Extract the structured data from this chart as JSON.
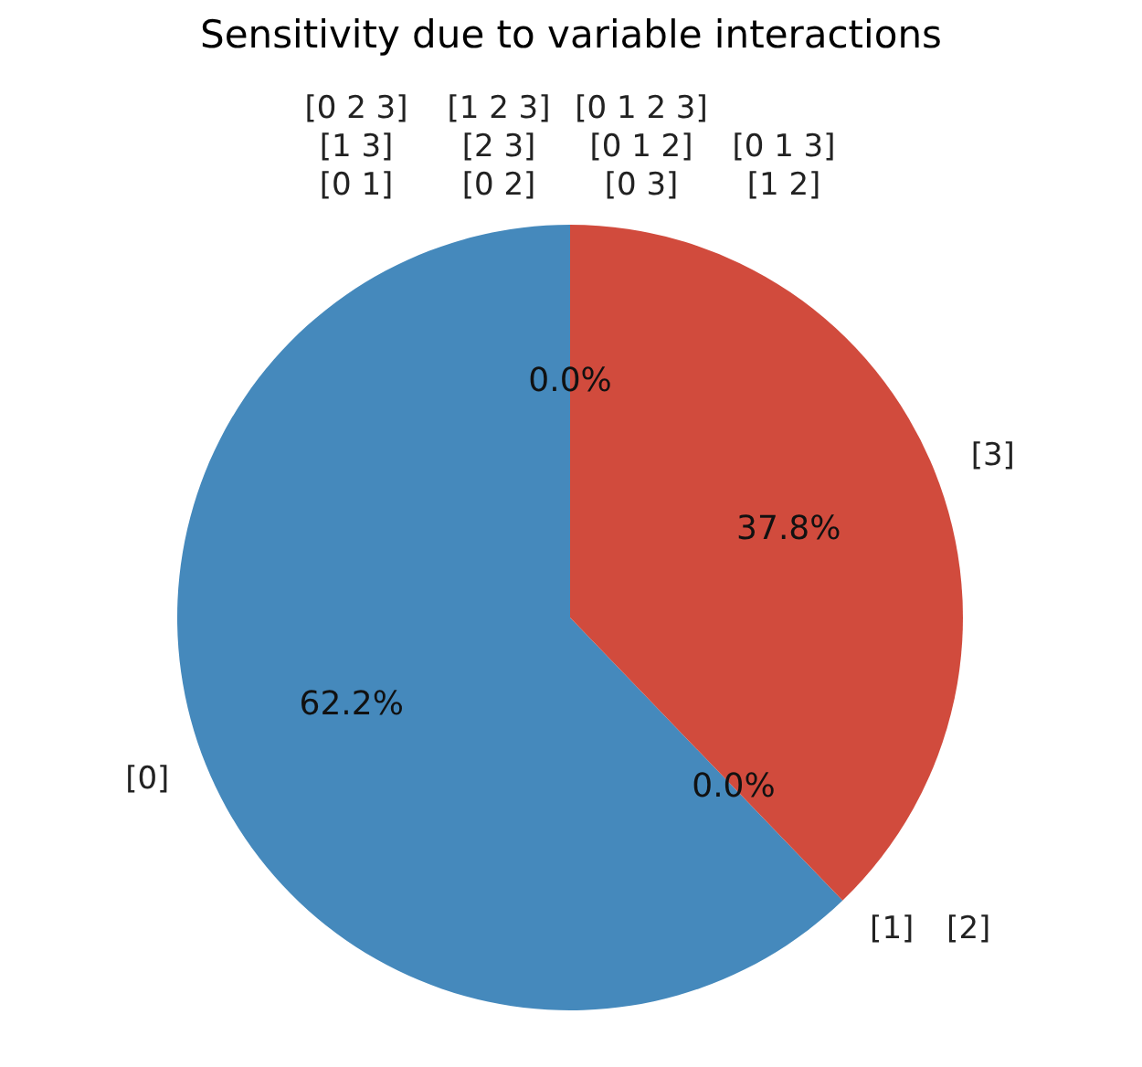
{
  "chart_data": {
    "type": "pie",
    "title": "Sensitivity due to variable interactions",
    "categories": [
      "[0]",
      "[1]",
      "[2]",
      "[3]",
      "[0 1]",
      "[0 2]",
      "[0 3]",
      "[1 2]",
      "[1 3]",
      "[2 3]",
      "[0 1 2]",
      "[0 1 3]",
      "[0 2 3]",
      "[1 2 3]",
      "[0 1 2 3]"
    ],
    "values": [
      62.2,
      0,
      0,
      37.8,
      0,
      0,
      0,
      0,
      0,
      0,
      0,
      0,
      0,
      0,
      0
    ],
    "colors": [
      "#4589bc",
      "#4589bc",
      "#d14b3d",
      "#d14b3d",
      "#4589bc",
      "#d14b3d",
      "#4589bc",
      "#d14b3d",
      "#4589bc",
      "#d14b3d",
      "#4589bc",
      "#d14b3d",
      "#4589bc",
      "#d14b3d",
      "#4589bc"
    ],
    "value_labels": [
      "62.2%",
      "0.0%",
      null,
      "37.8%",
      "0.0%",
      null,
      null,
      null,
      null,
      null,
      null,
      null,
      null,
      null,
      null
    ],
    "legend": false
  }
}
